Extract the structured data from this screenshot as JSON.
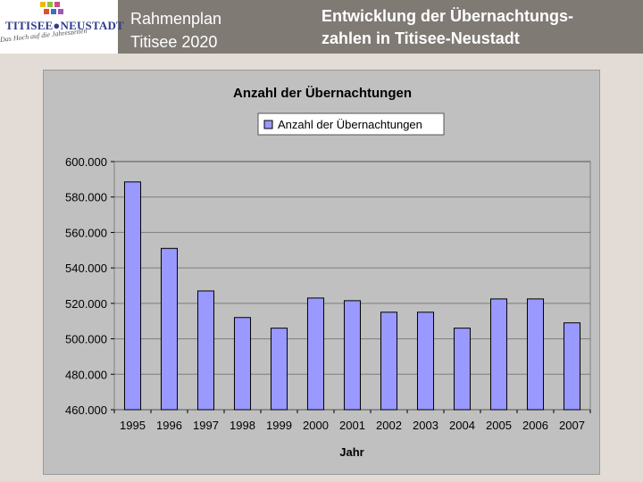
{
  "header": {
    "logo": {
      "wordmark": "TITISEE●NEUSTADT",
      "slogan": "Das Hoch auf die Jahreszeiten"
    },
    "left_title_line1": "Rahmenplan",
    "left_title_line2": "Titisee 2020",
    "right_title_line1": "Entwicklung der Übernachtungs-",
    "right_title_line2": "zahlen in Titisee-Neustadt"
  },
  "chart_data": {
    "type": "bar",
    "title": "Anzahl der Übernachtungen",
    "legend": [
      "Anzahl der Übernachtungen"
    ],
    "legend_position": "top",
    "xlabel": "Jahr",
    "ylabel": "",
    "categories": [
      "1995",
      "1996",
      "1997",
      "1998",
      "1999",
      "2000",
      "2001",
      "2002",
      "2003",
      "2004",
      "2005",
      "2006",
      "2007"
    ],
    "series": [
      {
        "name": "Anzahl der Übernachtungen",
        "values": [
          588500,
          551000,
          527000,
          512000,
          506000,
          523000,
          521500,
          515000,
          515000,
          506000,
          522500,
          522500,
          509000
        ]
      }
    ],
    "ylim": [
      460000,
      600000
    ],
    "yticks": [
      460000,
      480000,
      500000,
      520000,
      540000,
      560000,
      580000,
      600000
    ],
    "ytick_labels": [
      "460.000",
      "480.000",
      "500.000",
      "520.000",
      "540.000",
      "560.000",
      "580.000",
      "600.000"
    ],
    "grid": true,
    "colors": {
      "bar": "#9999ff",
      "bar_edge": "#000000",
      "plot_bg": "#c0c0c0",
      "grid": "#000000"
    }
  }
}
